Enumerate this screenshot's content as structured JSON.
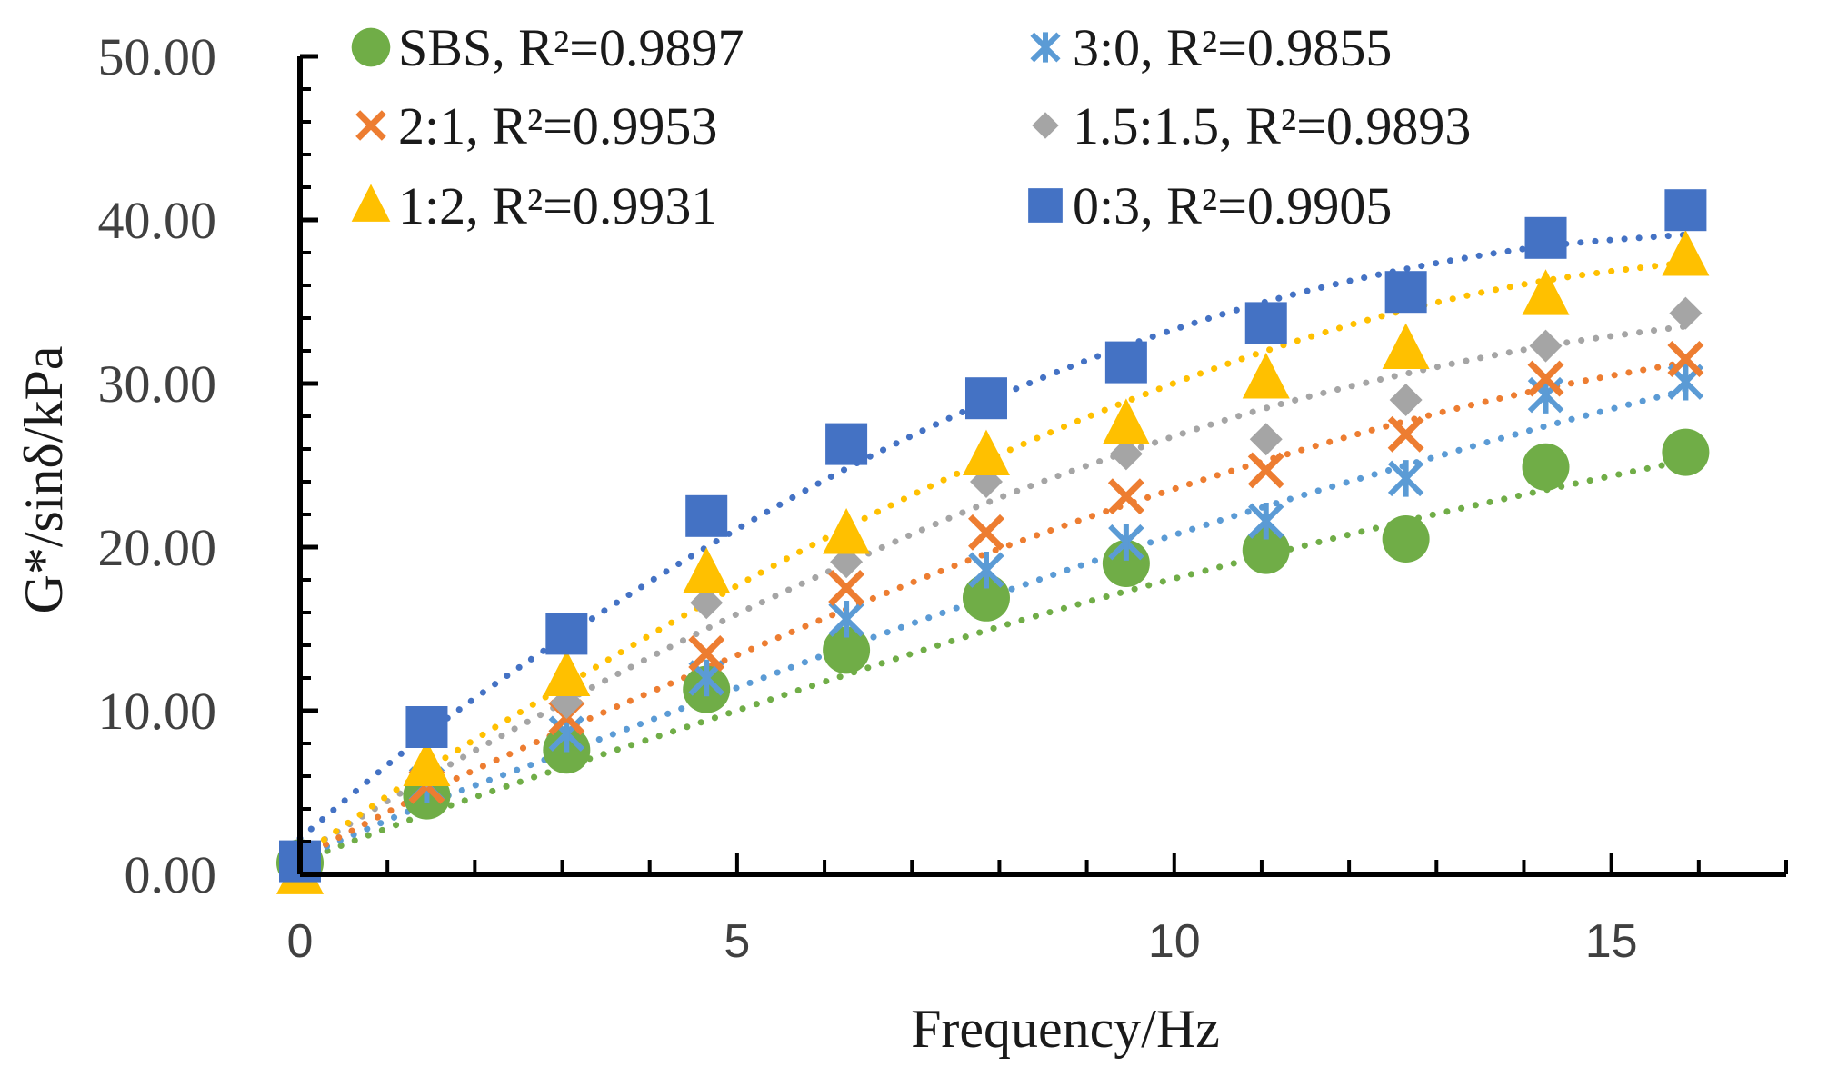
{
  "chart_data": {
    "type": "scatter",
    "title": "",
    "xlabel": "Frequency/Hz",
    "ylabel": "G*/sinδ/kPa",
    "xlim": [
      0,
      17
    ],
    "ylim": [
      0,
      50
    ],
    "xticks": [
      0,
      5,
      10,
      15
    ],
    "xtick_labels": [
      "0",
      "5",
      "10",
      "15"
    ],
    "yticks": [
      0,
      10,
      20,
      30,
      40,
      50
    ],
    "ytick_labels": [
      "0.00",
      "10.00",
      "20.00",
      "30.00",
      "40.00",
      "50.00"
    ],
    "grid": false,
    "legend_position": "top",
    "trendline": "dotted polynomial fit",
    "series": [
      {
        "name": "SBS, R²=0.9897",
        "color": "#70ad47",
        "marker": "circle",
        "x": [
          0,
          1.45,
          3.05,
          4.65,
          6.25,
          7.85,
          9.45,
          11.05,
          12.65,
          14.25,
          15.85
        ],
        "y": [
          0.7,
          4.8,
          7.6,
          11.3,
          13.7,
          16.9,
          19.0,
          19.8,
          20.5,
          24.9,
          25.8
        ],
        "fit": [
          0.8,
          3.7,
          6.6,
          9.4,
          12.2,
          14.9,
          17.3,
          19.5,
          21.6,
          23.5,
          25.3
        ]
      },
      {
        "name": "3:0, R²=0.9855",
        "color": "#5b9bd5",
        "marker": "asterisk",
        "x": [
          0,
          1.45,
          3.05,
          4.65,
          6.25,
          7.85,
          9.45,
          11.05,
          12.65,
          14.25,
          15.85
        ],
        "y": [
          0.8,
          5.5,
          8.6,
          12.0,
          15.6,
          18.6,
          20.3,
          21.6,
          24.2,
          29.3,
          30.1
        ],
        "fit": [
          1.0,
          4.3,
          7.5,
          10.7,
          13.9,
          16.9,
          19.8,
          22.5,
          25.0,
          27.4,
          29.6
        ]
      },
      {
        "name": "2:1, R²=0.9953",
        "color": "#ed7d31",
        "marker": "x",
        "x": [
          0,
          1.45,
          3.05,
          4.65,
          6.25,
          7.85,
          9.45,
          11.05,
          12.65,
          14.25,
          15.85
        ],
        "y": [
          0.9,
          5.4,
          9.6,
          13.5,
          17.5,
          20.9,
          23.1,
          24.7,
          26.9,
          30.3,
          31.5
        ],
        "fit": [
          1.0,
          5.0,
          8.9,
          12.6,
          16.2,
          19.6,
          22.6,
          25.3,
          27.7,
          29.7,
          31.3
        ]
      },
      {
        "name": "1.5:1.5, R²=0.9893",
        "color": "#a5a5a5",
        "marker": "diamond",
        "x": [
          0,
          1.45,
          3.05,
          4.65,
          6.25,
          7.85,
          9.45,
          11.05,
          12.65,
          14.25,
          15.85
        ],
        "y": [
          1.0,
          6.3,
          10.5,
          16.6,
          19.1,
          24.0,
          25.7,
          26.6,
          29.0,
          32.3,
          34.3
        ],
        "fit": [
          1.2,
          5.9,
          10.6,
          15.0,
          19.0,
          22.7,
          25.8,
          28.5,
          30.6,
          32.3,
          33.5
        ]
      },
      {
        "name": "1:2, R²=0.9931",
        "color": "#ffc000",
        "marker": "triangle",
        "x": [
          0,
          1.45,
          3.05,
          4.65,
          6.25,
          7.85,
          9.45,
          11.05,
          12.65,
          14.25,
          15.85
        ],
        "y": [
          0.0,
          6.6,
          12.1,
          18.4,
          20.8,
          25.6,
          27.5,
          30.3,
          32.1,
          35.4,
          37.8
        ],
        "fit": [
          1.1,
          6.4,
          11.6,
          16.6,
          21.2,
          25.3,
          28.9,
          32.0,
          34.5,
          36.3,
          37.4
        ]
      },
      {
        "name": "0:3, R²=0.9905",
        "color": "#4472c4",
        "marker": "square",
        "x": [
          0,
          1.45,
          3.05,
          4.65,
          6.25,
          7.85,
          9.45,
          11.05,
          12.65,
          14.25,
          15.85
        ],
        "y": [
          0.8,
          9.0,
          14.7,
          21.9,
          26.3,
          29.1,
          31.3,
          33.7,
          35.6,
          38.9,
          40.6
        ],
        "fit": [
          2.2,
          8.6,
          14.6,
          20.0,
          24.8,
          28.9,
          32.3,
          35.0,
          37.0,
          38.4,
          39.1
        ]
      }
    ]
  }
}
